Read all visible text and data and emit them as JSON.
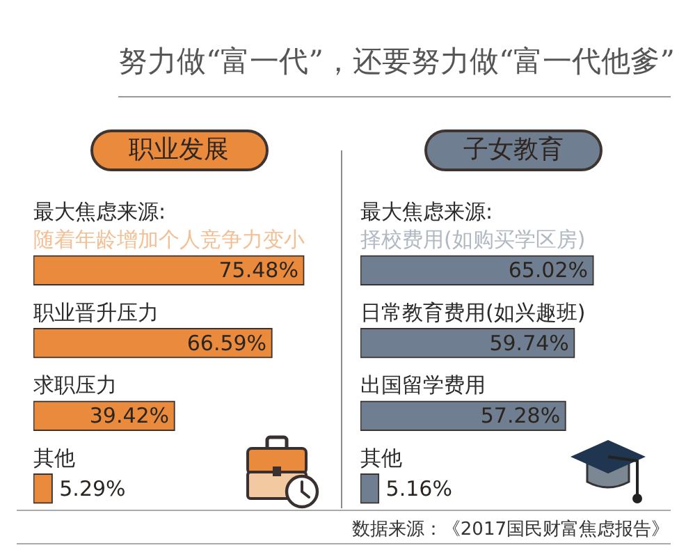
{
  "chart_data": [
    {
      "type": "bar",
      "orientation": "horizontal",
      "title": "职业发展",
      "subtitle": "最大焦虑来源:",
      "categories": [
        "随着年龄增加个人竞争力变小",
        "职业晋升压力",
        "求职压力",
        "其他"
      ],
      "values": [
        75.48,
        66.59,
        39.42,
        5.29
      ],
      "value_labels": [
        "75.48%",
        "66.59%",
        "39.42%",
        "5.29%"
      ],
      "color": "#ea8a3c",
      "xlim": [
        0,
        85
      ],
      "tick_labels": "y",
      "annotations": [
        "努力做“富一代”，还要努力做“富一代他爹”"
      ]
    },
    {
      "type": "bar",
      "orientation": "horizontal",
      "title": "子女教育",
      "subtitle": "最大焦虑来源:",
      "categories": [
        "择校费用(如购买学区房)",
        "日常教育费用(如兴趣班)",
        "出国留学费用",
        "其他"
      ],
      "values": [
        65.02,
        59.74,
        57.28,
        5.16
      ],
      "value_labels": [
        "65.02%",
        "59.74%",
        "57.28%",
        "5.16%"
      ],
      "color": "#6f7e90",
      "xlim": [
        0,
        85
      ],
      "tick_labels": "y",
      "annotations": [
        "数据来源：《2017国民财富焦虑报告》"
      ]
    }
  ]
}
